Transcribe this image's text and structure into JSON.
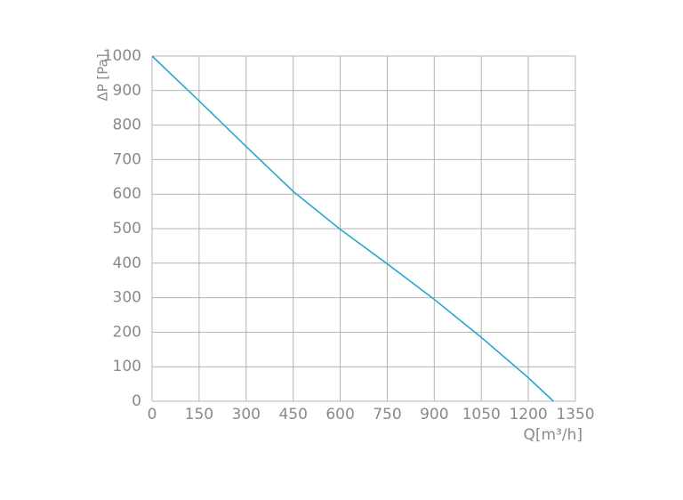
{
  "chart_data": {
    "type": "line",
    "x_label": "Q[m³/h]",
    "y_label": "ΔP [Pa]",
    "x": [
      0,
      150,
      300,
      450,
      600,
      750,
      900,
      1050,
      1200,
      1280
    ],
    "series": [
      {
        "color": "#2ba7cf",
        "values": [
          1000,
          870,
          738,
          608,
          498,
          398,
          295,
          185,
          68,
          0
        ]
      }
    ],
    "xlim": [
      0,
      1350
    ],
    "xticks": [
      0,
      150,
      300,
      450,
      600,
      750,
      900,
      1050,
      1200,
      1350
    ],
    "ylim": [
      0,
      1000
    ],
    "yticks": [
      0,
      100,
      200,
      300,
      400,
      500,
      600,
      700,
      800,
      900,
      1000
    ],
    "grid": true
  }
}
